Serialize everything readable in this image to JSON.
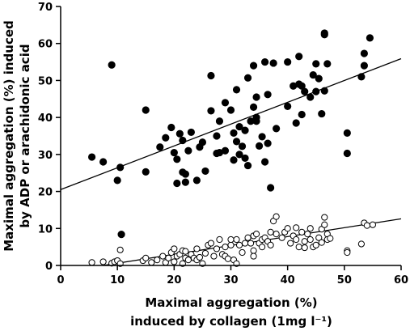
{
  "chart_data": {
    "type": "scatter",
    "xlabel_lines": [
      "Maximal aggregation (%)",
      "induced by collagen (1mg l⁻¹)"
    ],
    "ylabel_lines": [
      "Maximal aggregation (%) induced",
      "by ADP or arachidonic acid"
    ],
    "xlim": [
      0,
      60
    ],
    "ylim": [
      0,
      70
    ],
    "xticks": [
      0,
      10,
      20,
      30,
      40,
      50,
      60
    ],
    "yticks": [
      0,
      10,
      20,
      30,
      40,
      50,
      60,
      70
    ],
    "grid": false,
    "legend": "none",
    "series": [
      {
        "marker": "filled-circle",
        "color": "#000000",
        "fit_line": {
          "slope": 0.59,
          "intercept": 20.5
        },
        "points": [
          [
            5.5,
            29.3
          ],
          [
            7.5,
            28
          ],
          [
            9,
            54.2
          ],
          [
            10,
            23
          ],
          [
            10.5,
            26.5
          ],
          [
            10.7,
            8.4
          ],
          [
            15,
            42
          ],
          [
            15,
            25.3
          ],
          [
            17.5,
            32
          ],
          [
            18.5,
            34.5
          ],
          [
            19.5,
            37.3
          ],
          [
            20,
            30.5
          ],
          [
            20.5,
            28.7
          ],
          [
            20.5,
            22.2
          ],
          [
            21,
            35.6
          ],
          [
            21.5,
            33.8
          ],
          [
            21.5,
            25.2
          ],
          [
            22,
            24.7
          ],
          [
            22,
            22.5
          ],
          [
            22.5,
            31
          ],
          [
            23,
            36
          ],
          [
            24,
            23
          ],
          [
            24.5,
            32
          ],
          [
            25,
            33.3
          ],
          [
            25.5,
            25.5
          ],
          [
            26.5,
            41.8
          ],
          [
            26.5,
            51.3
          ],
          [
            27.5,
            35
          ],
          [
            27.5,
            30.3
          ],
          [
            28,
            39
          ],
          [
            28,
            30.5
          ],
          [
            29,
            44
          ],
          [
            29,
            31
          ],
          [
            30,
            42
          ],
          [
            30.5,
            35.8
          ],
          [
            30.5,
            28.5
          ],
          [
            31,
            47.5
          ],
          [
            31,
            33.5
          ],
          [
            31.5,
            37.5
          ],
          [
            31.5,
            30
          ],
          [
            32,
            32.2
          ],
          [
            32.5,
            36.5
          ],
          [
            32.5,
            29
          ],
          [
            33,
            50.7
          ],
          [
            33,
            27
          ],
          [
            33.5,
            39
          ],
          [
            34,
            54
          ],
          [
            34,
            42.8
          ],
          [
            34.5,
            40
          ],
          [
            34.5,
            45.5
          ],
          [
            34.5,
            39
          ],
          [
            35,
            32.3
          ],
          [
            35.5,
            34.8
          ],
          [
            36,
            55
          ],
          [
            36,
            28
          ],
          [
            36.5,
            46.2
          ],
          [
            36.5,
            33
          ],
          [
            37,
            21
          ],
          [
            37.5,
            54.7
          ],
          [
            38,
            37
          ],
          [
            40,
            55
          ],
          [
            40,
            43
          ],
          [
            41,
            48.5
          ],
          [
            41.5,
            38.5
          ],
          [
            42,
            49
          ],
          [
            42,
            56.5
          ],
          [
            42.5,
            48.5
          ],
          [
            42.5,
            40.8
          ],
          [
            43,
            47
          ],
          [
            44,
            45.5
          ],
          [
            44.5,
            51.5
          ],
          [
            45,
            54.5
          ],
          [
            45,
            47
          ],
          [
            45.5,
            50.5
          ],
          [
            46,
            41
          ],
          [
            46.5,
            62.8
          ],
          [
            46.5,
            62.4
          ],
          [
            46.5,
            47.2
          ],
          [
            47,
            54.5
          ],
          [
            50.5,
            35.8
          ],
          [
            50.5,
            30.3
          ],
          [
            53,
            51
          ],
          [
            53.5,
            57.3
          ],
          [
            53.5,
            54
          ],
          [
            54.5,
            61.5
          ]
        ]
      },
      {
        "marker": "open-circle",
        "color": "#000000",
        "fit_line": {
          "slope": 0.24,
          "intercept": -1.8,
          "x_start": 7.5
        },
        "points": [
          [
            5.5,
            0.8
          ],
          [
            7.5,
            1
          ],
          [
            9,
            0.6
          ],
          [
            9.5,
            1
          ],
          [
            10,
            1.3
          ],
          [
            10.5,
            0.5
          ],
          [
            10.5,
            4.2
          ],
          [
            14.5,
            1.3
          ],
          [
            15,
            2
          ],
          [
            16,
            0.8
          ],
          [
            17,
            1.5
          ],
          [
            18,
            2.5
          ],
          [
            18.5,
            0.8
          ],
          [
            19,
            2
          ],
          [
            19.5,
            3.5
          ],
          [
            20,
            4.5
          ],
          [
            20,
            1
          ],
          [
            20.5,
            2.5
          ],
          [
            21,
            3
          ],
          [
            21.5,
            0.5
          ],
          [
            21.5,
            4
          ],
          [
            22,
            3.8
          ],
          [
            22,
            2
          ],
          [
            22.5,
            1.5
          ],
          [
            23,
            3
          ],
          [
            23.5,
            2
          ],
          [
            24,
            4.5
          ],
          [
            24,
            1.5
          ],
          [
            24.5,
            2.2
          ],
          [
            25,
            0.5
          ],
          [
            25.5,
            3.3
          ],
          [
            26,
            5.5
          ],
          [
            26.5,
            6
          ],
          [
            27,
            2.5
          ],
          [
            27.5,
            4.5
          ],
          [
            28,
            7
          ],
          [
            28.5,
            3
          ],
          [
            29,
            2.5
          ],
          [
            29,
            5
          ],
          [
            29.5,
            1.8
          ],
          [
            30,
            5.5
          ],
          [
            30,
            7
          ],
          [
            30.5,
            1.5
          ],
          [
            31,
            0.5
          ],
          [
            31,
            7
          ],
          [
            31.5,
            5.5
          ],
          [
            32,
            3.5
          ],
          [
            32.5,
            6
          ],
          [
            33,
            7.5
          ],
          [
            33.5,
            6
          ],
          [
            34,
            8
          ],
          [
            34,
            4
          ],
          [
            34,
            2.5
          ],
          [
            34.5,
            8.5
          ],
          [
            35,
            6
          ],
          [
            35.5,
            7
          ],
          [
            35.5,
            5
          ],
          [
            36,
            7.5
          ],
          [
            36.5,
            6.5
          ],
          [
            37,
            9
          ],
          [
            37,
            5.5
          ],
          [
            37.5,
            12
          ],
          [
            38,
            13.2
          ],
          [
            38,
            8.5
          ],
          [
            39,
            7.5
          ],
          [
            39.5,
            9
          ],
          [
            40,
            10
          ],
          [
            40.5,
            6
          ],
          [
            41,
            8
          ],
          [
            41.5,
            10.2
          ],
          [
            41.5,
            7
          ],
          [
            42,
            5
          ],
          [
            42.5,
            9
          ],
          [
            43,
            4.8
          ],
          [
            43,
            6.5
          ],
          [
            43.5,
            8.5
          ],
          [
            44,
            7
          ],
          [
            44,
            10
          ],
          [
            44.5,
            5
          ],
          [
            45,
            5.5
          ],
          [
            45.5,
            7.5
          ],
          [
            46,
            6.2
          ],
          [
            46,
            9.8
          ],
          [
            46.5,
            13
          ],
          [
            46.5,
            11
          ],
          [
            47,
            8.5
          ],
          [
            47,
            7
          ],
          [
            47.5,
            7.3
          ],
          [
            50.5,
            4
          ],
          [
            50.5,
            3.5
          ],
          [
            53,
            5.8
          ],
          [
            53.5,
            11.5
          ],
          [
            54,
            10.8
          ],
          [
            55,
            11
          ]
        ]
      }
    ]
  }
}
